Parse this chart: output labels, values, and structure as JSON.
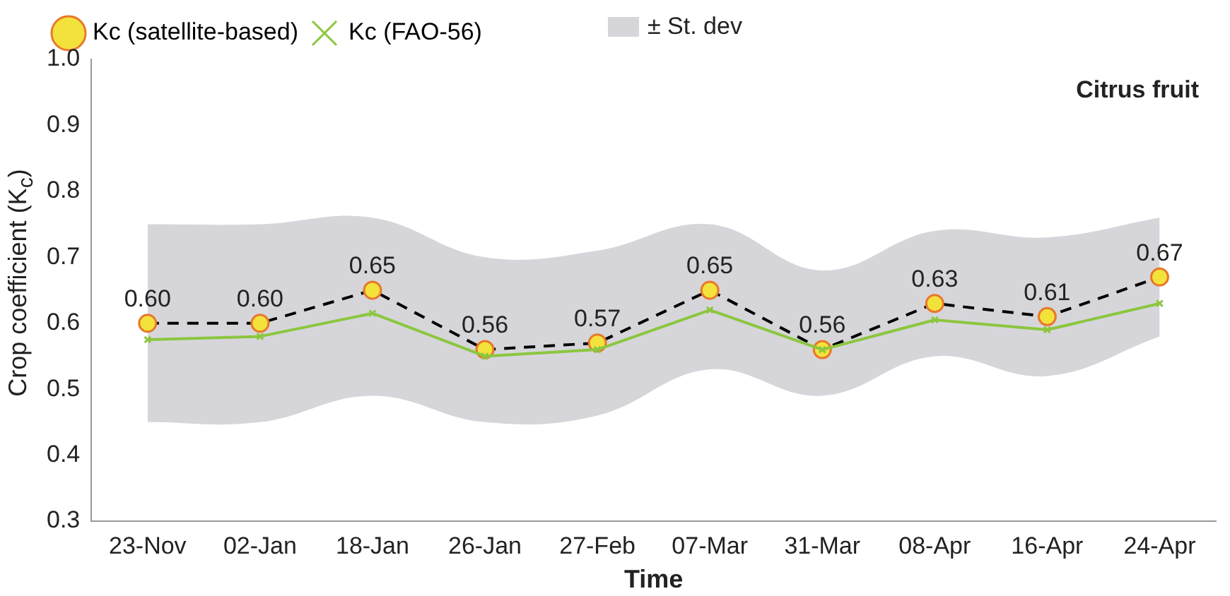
{
  "chart_data": {
    "type": "line",
    "title": "Citrus fruit",
    "xlabel": "Time",
    "ylabel": "Crop coefficient (K$_{c}$)",
    "categories": [
      "23-Nov",
      "02-Jan",
      "18-Jan",
      "26-Jan",
      "27-Feb",
      "07-Mar",
      "31-Mar",
      "08-Apr",
      "16-Apr",
      "24-Apr"
    ],
    "series": [
      {
        "name": "Kc (satellite-based)",
        "color": "#000000",
        "values": [
          0.6,
          0.6,
          0.65,
          0.56,
          0.57,
          0.65,
          0.56,
          0.63,
          0.61,
          0.67
        ],
        "value_labels": [
          "0.60",
          "0.60",
          "0.65",
          "0.56",
          "0.57",
          "0.65",
          "0.56",
          "0.63",
          "0.61",
          "0.67"
        ],
        "lower": [
          0.45,
          0.45,
          0.49,
          0.45,
          0.46,
          0.53,
          0.49,
          0.55,
          0.52,
          0.58
        ],
        "upper": [
          0.75,
          0.75,
          0.76,
          0.7,
          0.71,
          0.75,
          0.68,
          0.74,
          0.73,
          0.76
        ],
        "marker": "circle",
        "line_style": "dashed"
      },
      {
        "name": "Kc (FAO-56)",
        "color": "#8cc63f",
        "values": [
          0.575,
          0.58,
          0.615,
          0.55,
          0.56,
          0.62,
          0.56,
          0.605,
          0.59,
          0.63
        ],
        "marker": "cross",
        "line_style": "solid"
      }
    ],
    "annotations": [
      "± St. dev"
    ],
    "ylim": [
      0.3,
      1.0
    ],
    "yticks": [
      {
        "value": 0.3,
        "label": "0.3"
      },
      {
        "value": 0.4,
        "label": "0.4"
      },
      {
        "value": 0.5,
        "label": "0.5"
      },
      {
        "value": 0.6,
        "label": "0.6"
      },
      {
        "value": 0.7,
        "label": "0.7"
      },
      {
        "value": 0.8,
        "label": "0.8"
      },
      {
        "value": 0.9,
        "label": "0.9"
      },
      {
        "value": 1.0,
        "label": "1.0"
      }
    ],
    "legend": "top left"
  }
}
